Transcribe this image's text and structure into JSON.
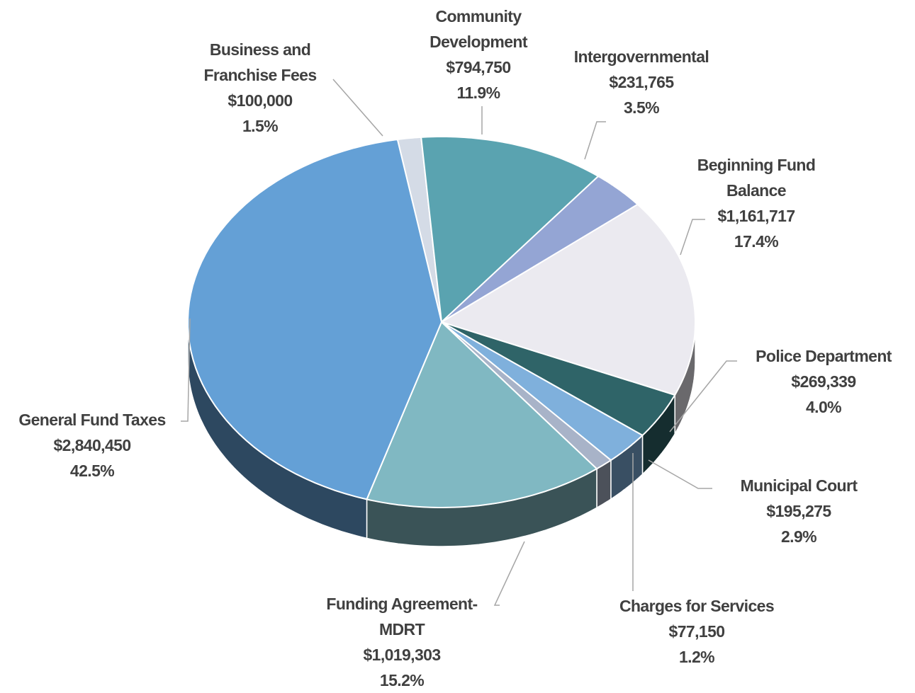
{
  "chart_data": {
    "type": "pie",
    "categories": [
      "Business and Franchise Fees",
      "Community Development",
      "Intergovernmental",
      "Beginning Fund Balance",
      "Police Department",
      "Municipal Court",
      "Charges for Services",
      "Funding Agreement-MDRT",
      "General Fund Taxes"
    ],
    "values": [
      100000,
      794750,
      231765,
      1161717,
      269339,
      195275,
      77150,
      1019303,
      2840450
    ],
    "value_labels": [
      "$100,000",
      "$794,750",
      "$231,765",
      "$1,161,717",
      "$269,339",
      "$195,275",
      "$77,150",
      "$1,019,303",
      "$2,840,450"
    ],
    "percents": [
      1.5,
      11.9,
      3.5,
      17.4,
      4.0,
      2.9,
      1.2,
      15.2,
      42.5
    ],
    "percent_labels": [
      "1.5%",
      "11.9%",
      "3.5%",
      "17.4%",
      "4.0%",
      "2.9%",
      "1.2%",
      "15.2%",
      "42.5%"
    ],
    "colors": [
      "#d4dbe6",
      "#5aa3b0",
      "#94a5d4",
      "#ebeaf0",
      "#2f6468",
      "#7fb0dc",
      "#a8b3c8",
      "#80b8c2",
      "#64a0d6"
    ]
  }
}
